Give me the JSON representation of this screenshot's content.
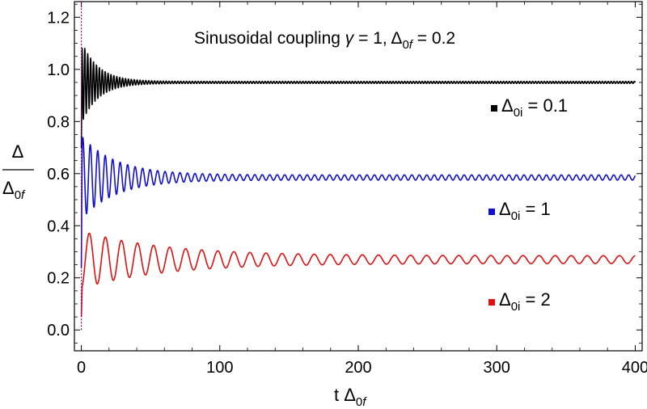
{
  "chart_data": {
    "type": "line",
    "title": {
      "prefix": "Sinusoidal coupling ",
      "gamma_symbol": "γ",
      "gamma_value": " = 1, Δ",
      "sub": "0",
      "sub_italic": "f",
      "suffix": " = 0.2"
    },
    "xlabel": {
      "main": "t Δ",
      "sub": "0",
      "sub_italic": "f"
    },
    "ylabel": {
      "numerator": "Δ",
      "denominator_main": "Δ",
      "denominator_sub": "0",
      "denominator_sub_italic": "f"
    },
    "xlim": [
      -5,
      405
    ],
    "ylim": [
      -0.08,
      1.26
    ],
    "x_ticks": [
      0,
      100,
      200,
      300,
      400
    ],
    "x_tick_labels": [
      "0",
      "100",
      "200",
      "300",
      "400"
    ],
    "y_ticks": [
      0.0,
      0.2,
      0.4,
      0.6,
      0.8,
      1.0,
      1.2
    ],
    "y_tick_labels": [
      "0.0",
      "0.2",
      "0.4",
      "0.6",
      "0.8",
      "1.0",
      "1.2"
    ],
    "x_range": [
      0,
      400
    ],
    "series": [
      {
        "name": "Δ0i = 0.1",
        "label_main": "Δ",
        "label_sub": "0",
        "label_sub_italic": "i",
        "label_value": " = 0.1",
        "color": "#000000",
        "start": 0.7,
        "steady": 0.95,
        "initial_amplitude": 0.16,
        "final_amplitude": 0.004,
        "decay_time": 12,
        "period": 2.1,
        "peak": 1.11
      },
      {
        "name": "Δ0i = 1",
        "label_main": "Δ",
        "label_sub": "0",
        "label_sub_italic": "i",
        "label_value": " = 1",
        "color": "#1010cc",
        "start": 0.24,
        "steady": 0.585,
        "initial_amplitude": 0.16,
        "final_amplitude": 0.01,
        "decay_time": 25,
        "period": 5.4,
        "peak": 0.75
      },
      {
        "name": "Δ0i = 2",
        "label_main": "Δ",
        "label_sub": "0",
        "label_sub_italic": "i",
        "label_value": " = 2",
        "color": "#dd1111",
        "start": 0.05,
        "steady": 0.27,
        "initial_amplitude": 0.11,
        "final_amplitude": 0.015,
        "decay_time": 60,
        "period": 11.6,
        "peak": 0.38
      }
    ],
    "initial_dotted_line_x": 0,
    "initial_dotted_line_range": [
      0.0,
      1.26
    ],
    "initial_dotted_line_color": "#880088"
  }
}
